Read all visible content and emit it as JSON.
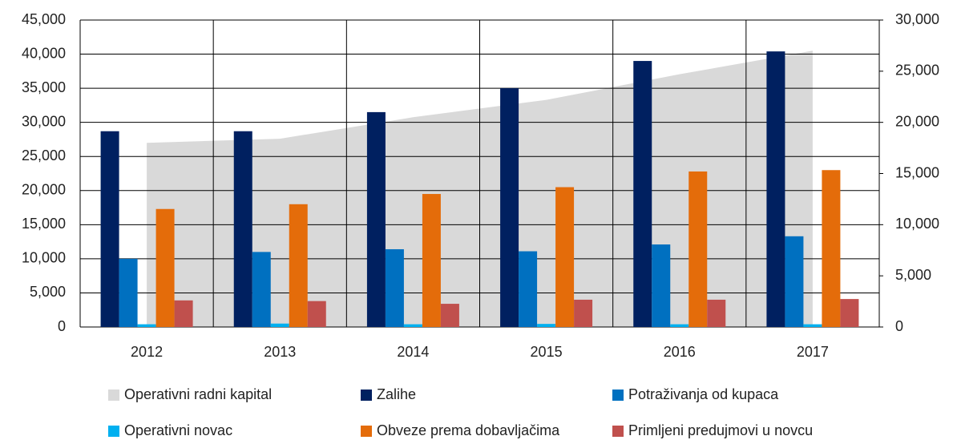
{
  "chart_data": {
    "type": "bar",
    "categories": [
      "2012",
      "2013",
      "2014",
      "2015",
      "2016",
      "2017"
    ],
    "series": [
      {
        "name": "Operativni radni kapital",
        "color": "#d9d9d9",
        "type": "area",
        "axis": "y2",
        "values": [
          18000,
          18400,
          20500,
          22200,
          24700,
          27000
        ]
      },
      {
        "name": "Zalihe",
        "color": "#002060",
        "values": [
          28700,
          28700,
          31500,
          35000,
          39000,
          40400
        ]
      },
      {
        "name": "Potraživanja od kupaca",
        "color": "#0070c0",
        "values": [
          10000,
          11000,
          11400,
          11100,
          12100,
          13300
        ]
      },
      {
        "name": "Operativni novac",
        "color": "#00b0f0",
        "values": [
          400,
          500,
          400,
          450,
          400,
          400
        ]
      },
      {
        "name": "Obveze prema dobavljačima",
        "color": "#e46c0a",
        "values": [
          17300,
          18000,
          19500,
          20500,
          22800,
          23000
        ]
      },
      {
        "name": "Primljeni predujmovi u novcu",
        "color": "#c0504d",
        "values": [
          3900,
          3800,
          3400,
          4000,
          4000,
          4100
        ]
      }
    ],
    "ylim": [
      0,
      45000
    ],
    "yticks": [
      0,
      {
        "value": 5000,
        "label": "5,000"
      },
      {
        "value": 10000,
        "label": "10,000"
      },
      {
        "value": 15000,
        "label": "15,000"
      },
      {
        "value": 20000,
        "label": "20,000"
      },
      {
        "value": 25000,
        "label": "25,000"
      },
      {
        "value": 30000,
        "label": "30,000"
      },
      {
        "value": 35000,
        "label": "35,000"
      },
      {
        "value": 40000,
        "label": "40,000"
      },
      {
        "value": 45000,
        "label": "45,000"
      }
    ],
    "y2lim": [
      0,
      30000
    ],
    "y2ticks": [
      0,
      {
        "value": 5000,
        "label": "5,000"
      },
      {
        "value": 10000,
        "label": "10,000"
      },
      {
        "value": 15000,
        "label": "15,000"
      },
      {
        "value": 20000,
        "label": "20,000"
      },
      {
        "value": 25000,
        "label": "25,000"
      },
      {
        "value": 30000,
        "label": "30,000"
      }
    ],
    "grid": true,
    "legend": "bottom"
  }
}
